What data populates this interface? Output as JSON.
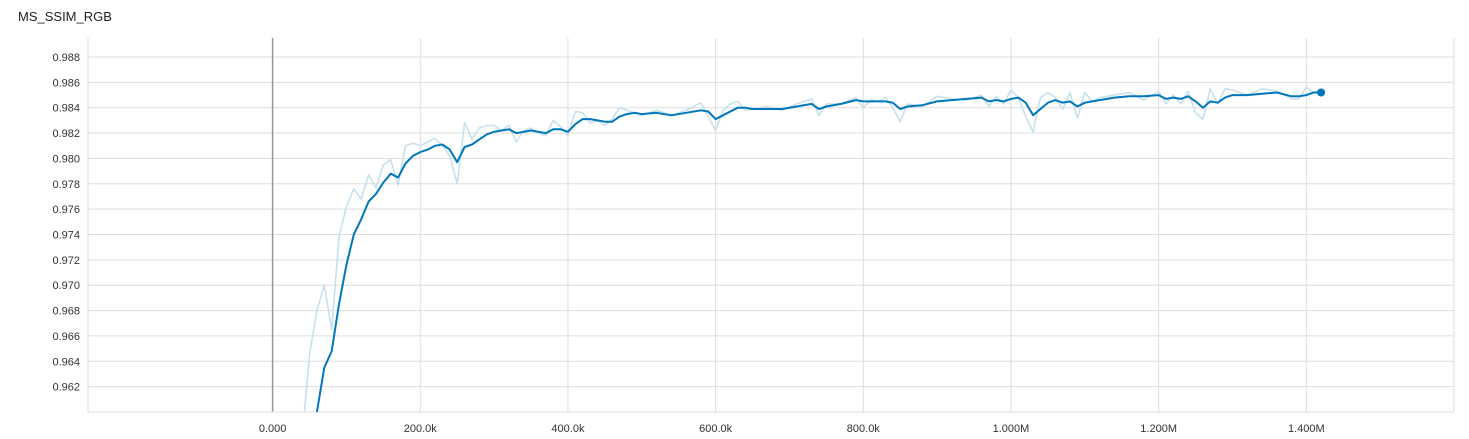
{
  "chart_data": {
    "type": "line",
    "title": "MS_SSIM_RGB",
    "xlabel": "",
    "ylabel": "",
    "xlim": [
      -250000,
      1600000
    ],
    "ylim": [
      0.96,
      0.9895
    ],
    "grid": true,
    "x_ticks": [
      0,
      200000,
      400000,
      600000,
      800000,
      1000000,
      1200000,
      1400000
    ],
    "x_tick_labels": [
      "0.000",
      "200.0k",
      "400.0k",
      "600.0k",
      "800.0k",
      "1.000M",
      "1.200M",
      "1.400M"
    ],
    "y_ticks": [
      0.962,
      0.964,
      0.966,
      0.968,
      0.97,
      0.972,
      0.974,
      0.976,
      0.978,
      0.98,
      0.982,
      0.984,
      0.986,
      0.988
    ],
    "y_tick_labels": [
      "0.962",
      "0.964",
      "0.966",
      "0.968",
      "0.970",
      "0.972",
      "0.974",
      "0.976",
      "0.978",
      "0.980",
      "0.982",
      "0.984",
      "0.986",
      "0.988"
    ],
    "colors": {
      "smoothed": "#0077bb",
      "raw": "#c6e0ee",
      "grid": "#dddddd",
      "zero_line": "#999999"
    },
    "series": [
      {
        "role": "raw",
        "x": [
          40000,
          50000,
          60000,
          70000,
          80000,
          90000,
          100000,
          110000,
          120000,
          130000,
          140000,
          150000,
          160000,
          170000,
          180000,
          190000,
          200000,
          210000,
          220000,
          230000,
          240000,
          250000,
          260000,
          270000,
          280000,
          290000,
          300000,
          310000,
          320000,
          330000,
          340000,
          350000,
          360000,
          370000,
          380000,
          390000,
          400000,
          410000,
          420000,
          430000,
          440000,
          450000,
          460000,
          470000,
          480000,
          490000,
          500000,
          520000,
          540000,
          560000,
          580000,
          600000,
          610000,
          620000,
          630000,
          640000,
          650000,
          670000,
          690000,
          710000,
          730000,
          740000,
          750000,
          770000,
          790000,
          800000,
          810000,
          820000,
          830000,
          840000,
          850000,
          860000,
          880000,
          900000,
          920000,
          940000,
          960000,
          970000,
          980000,
          990000,
          1000000,
          1010000,
          1020000,
          1030000,
          1040000,
          1050000,
          1060000,
          1070000,
          1080000,
          1090000,
          1100000,
          1110000,
          1120000,
          1140000,
          1160000,
          1180000,
          1200000,
          1210000,
          1220000,
          1230000,
          1240000,
          1250000,
          1260000,
          1270000,
          1280000,
          1290000,
          1300000,
          1320000,
          1340000,
          1360000,
          1380000,
          1390000,
          1400000,
          1410000,
          1420000
        ],
        "y": [
          0.958,
          0.9645,
          0.968,
          0.97,
          0.9665,
          0.9738,
          0.9762,
          0.9776,
          0.9768,
          0.9787,
          0.9777,
          0.9795,
          0.9799,
          0.9779,
          0.981,
          0.9812,
          0.981,
          0.9813,
          0.9816,
          0.981,
          0.9802,
          0.978,
          0.9828,
          0.9815,
          0.9824,
          0.9826,
          0.9826,
          0.9822,
          0.9826,
          0.9813,
          0.9822,
          0.9824,
          0.982,
          0.9818,
          0.983,
          0.9825,
          0.9818,
          0.9837,
          0.9836,
          0.9828,
          0.983,
          0.9826,
          0.9831,
          0.984,
          0.9838,
          0.9836,
          0.9834,
          0.9838,
          0.9834,
          0.9838,
          0.9844,
          0.9822,
          0.9838,
          0.9843,
          0.9845,
          0.9838,
          0.9839,
          0.9841,
          0.9838,
          0.9843,
          0.9847,
          0.9834,
          0.9843,
          0.9843,
          0.9848,
          0.984,
          0.9846,
          0.9845,
          0.9848,
          0.984,
          0.9829,
          0.9843,
          0.9841,
          0.9849,
          0.9847,
          0.9846,
          0.985,
          0.9841,
          0.9849,
          0.9843,
          0.9854,
          0.9848,
          0.9833,
          0.9821,
          0.9848,
          0.9852,
          0.9848,
          0.9839,
          0.9852,
          0.9832,
          0.9852,
          0.9845,
          0.9848,
          0.985,
          0.9852,
          0.9846,
          0.9853,
          0.9843,
          0.985,
          0.9843,
          0.9853,
          0.9836,
          0.9831,
          0.9855,
          0.9843,
          0.9855,
          0.9854,
          0.985,
          0.9855,
          0.9853,
          0.9847,
          0.9847,
          0.9856,
          0.9852,
          0.9854
        ]
      },
      {
        "role": "smoothed",
        "x": [
          60000,
          70000,
          80000,
          90000,
          100000,
          110000,
          120000,
          130000,
          140000,
          150000,
          160000,
          170000,
          180000,
          190000,
          200000,
          210000,
          220000,
          230000,
          240000,
          250000,
          260000,
          270000,
          280000,
          290000,
          300000,
          310000,
          320000,
          330000,
          340000,
          350000,
          360000,
          370000,
          380000,
          390000,
          400000,
          410000,
          420000,
          430000,
          440000,
          450000,
          460000,
          470000,
          480000,
          490000,
          500000,
          520000,
          540000,
          560000,
          580000,
          590000,
          600000,
          610000,
          620000,
          630000,
          640000,
          650000,
          670000,
          690000,
          710000,
          730000,
          740000,
          750000,
          770000,
          790000,
          800000,
          810000,
          820000,
          830000,
          840000,
          850000,
          860000,
          880000,
          900000,
          920000,
          940000,
          960000,
          970000,
          980000,
          990000,
          1000000,
          1010000,
          1020000,
          1030000,
          1040000,
          1050000,
          1060000,
          1070000,
          1080000,
          1090000,
          1100000,
          1110000,
          1120000,
          1140000,
          1160000,
          1180000,
          1200000,
          1210000,
          1220000,
          1230000,
          1240000,
          1250000,
          1260000,
          1270000,
          1280000,
          1290000,
          1300000,
          1320000,
          1340000,
          1360000,
          1380000,
          1390000,
          1400000,
          1410000,
          1420000
        ],
        "y": [
          0.96,
          0.9635,
          0.9648,
          0.9685,
          0.9716,
          0.974,
          0.9752,
          0.9766,
          0.9772,
          0.9781,
          0.9788,
          0.9785,
          0.9796,
          0.9802,
          0.9805,
          0.9807,
          0.981,
          0.9811,
          0.9807,
          0.9797,
          0.9809,
          0.9811,
          0.9815,
          0.9819,
          0.9821,
          0.9822,
          0.9823,
          0.982,
          0.9821,
          0.9822,
          0.9821,
          0.982,
          0.9823,
          0.9823,
          0.9821,
          0.9827,
          0.9831,
          0.9831,
          0.983,
          0.9829,
          0.9829,
          0.9833,
          0.9835,
          0.9836,
          0.9835,
          0.9836,
          0.9834,
          0.9836,
          0.9838,
          0.9837,
          0.9831,
          0.9834,
          0.9837,
          0.984,
          0.984,
          0.9839,
          0.9839,
          0.9839,
          0.9841,
          0.9843,
          0.9839,
          0.9841,
          0.9843,
          0.9846,
          0.9845,
          0.9845,
          0.9845,
          0.9845,
          0.9844,
          0.9839,
          0.9841,
          0.9842,
          0.9845,
          0.9846,
          0.9847,
          0.9848,
          0.9845,
          0.9846,
          0.9845,
          0.9847,
          0.9848,
          0.9844,
          0.9834,
          0.9839,
          0.9844,
          0.9846,
          0.9844,
          0.9845,
          0.9841,
          0.9844,
          0.9845,
          0.9846,
          0.9848,
          0.9849,
          0.9849,
          0.985,
          0.9847,
          0.9848,
          0.9847,
          0.9849,
          0.9845,
          0.984,
          0.9845,
          0.9844,
          0.9848,
          0.985,
          0.985,
          0.9851,
          0.9852,
          0.9849,
          0.9849,
          0.985,
          0.9852,
          0.9852
        ]
      }
    ]
  }
}
